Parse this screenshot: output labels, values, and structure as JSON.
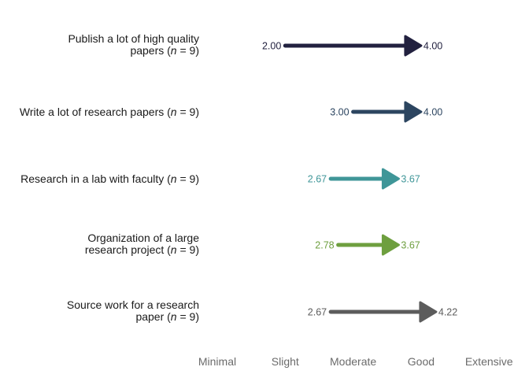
{
  "chart_data": {
    "type": "arrow",
    "title": "",
    "xlabel": "",
    "ylabel": "",
    "xlim": [
      1,
      5
    ],
    "x_ticks": [
      {
        "value": 1,
        "label": "Minimal"
      },
      {
        "value": 2,
        "label": "Slight"
      },
      {
        "value": 3,
        "label": "Moderate"
      },
      {
        "value": 4,
        "label": "Good"
      },
      {
        "value": 5,
        "label": "Extensive"
      }
    ],
    "grid": false,
    "rows": [
      {
        "label_lines": [
          [
            "Publish a lot of high quality",
            ""
          ],
          [
            "papers (",
            "n",
            " = 9)"
          ]
        ],
        "start": 2.0,
        "end": 4.0,
        "start_label": "2.00",
        "end_label": "4.00",
        "color": "#22213f"
      },
      {
        "label_lines": [
          [
            "Write a lot of research papers (",
            "n",
            " = 9)"
          ]
        ],
        "start": 3.0,
        "end": 4.0,
        "start_label": "3.00",
        "end_label": "4.00",
        "color": "#2c4560"
      },
      {
        "label_lines": [
          [
            "Research in a lab with faculty (",
            "n",
            " = 9)"
          ]
        ],
        "start": 2.67,
        "end": 3.67,
        "start_label": "2.67",
        "end_label": "3.67",
        "color": "#3f9698"
      },
      {
        "label_lines": [
          [
            "Organization of a large",
            ""
          ],
          [
            "research project (",
            "n",
            " = 9)"
          ]
        ],
        "start": 2.78,
        "end": 3.67,
        "start_label": "2.78",
        "end_label": "3.67",
        "color": "#6e9f3f"
      },
      {
        "label_lines": [
          [
            "Source work for a research",
            ""
          ],
          [
            "paper (",
            "n",
            " = 9)"
          ]
        ],
        "start": 2.67,
        "end": 4.22,
        "start_label": "2.67",
        "end_label": "4.22",
        "color": "#5c5c5c"
      }
    ]
  }
}
